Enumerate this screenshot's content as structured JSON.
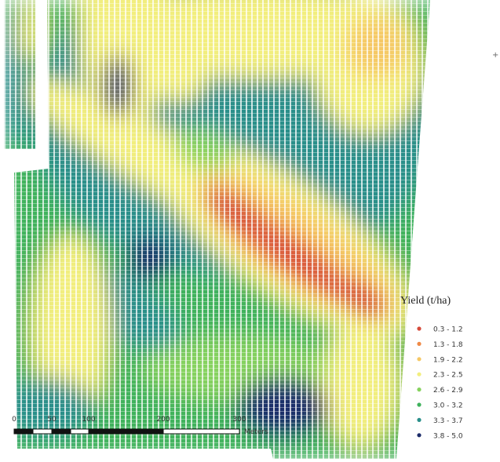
{
  "map": {
    "legend": {
      "title": "Yield (t/ha)",
      "classes": [
        {
          "label": "0.3 - 1.2",
          "color": "#d64a3a"
        },
        {
          "label": "1.3 - 1.8",
          "color": "#ef8a47"
        },
        {
          "label": "1.9 - 2.2",
          "color": "#f5c865"
        },
        {
          "label": "2.3 - 2.5",
          "color": "#f2ee7e"
        },
        {
          "label": "2.6 - 2.9",
          "color": "#86d25e"
        },
        {
          "label": "3.0 - 3.2",
          "color": "#3fb25c"
        },
        {
          "label": "3.3 - 3.7",
          "color": "#2a8f8a"
        },
        {
          "label": "3.8 - 5.0",
          "color": "#1d2d6a"
        }
      ]
    },
    "scale_bar": {
      "ticks": [
        "0",
        "50",
        "100",
        "200",
        "300"
      ],
      "unit": "Meters"
    }
  }
}
